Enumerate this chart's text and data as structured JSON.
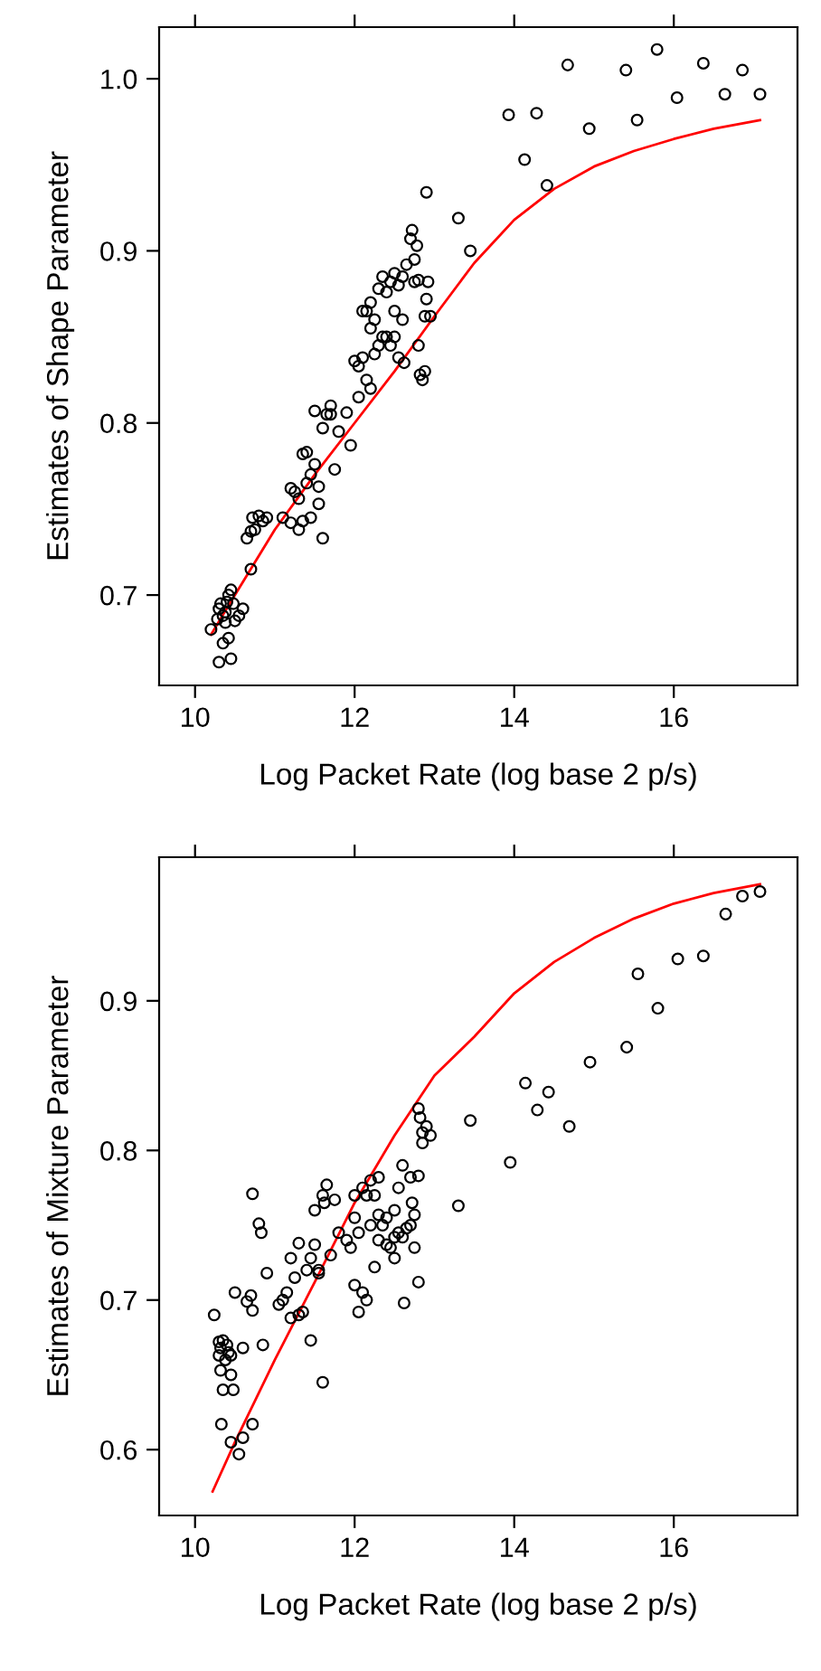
{
  "chart_data": [
    {
      "type": "scatter",
      "xlabel": "Log Packet Rate (log base 2 p/s)",
      "ylabel": "Estimates of Shape Parameter",
      "xlim": [
        9.55,
        17.55
      ],
      "xticks": [
        10,
        12,
        14,
        16
      ],
      "ylim": [
        0.6475,
        1.03
      ],
      "yticks": [
        0.7,
        0.8,
        0.9,
        {
          "value": 1.0,
          "label": "1.0"
        }
      ],
      "series": [
        {
          "marker": "circle",
          "color": "#000000",
          "x": [
            10.2,
            10.28,
            10.3,
            10.32,
            10.35,
            10.38,
            10.4,
            10.42,
            10.45,
            10.48,
            10.5,
            10.55,
            10.6,
            10.3,
            10.35,
            10.42,
            10.45,
            10.38,
            10.65,
            10.7,
            10.75,
            10.72,
            10.8,
            10.85,
            10.9,
            10.7,
            11.1,
            11.2,
            11.25,
            11.2,
            11.3,
            11.35,
            11.35,
            11.4,
            11.45,
            11.45,
            11.5,
            11.5,
            11.55,
            11.6,
            11.6,
            11.65,
            11.7,
            11.7,
            11.4,
            11.55,
            11.75,
            11.8,
            11.9,
            11.95,
            11.3,
            12.0,
            12.05,
            12.1,
            12.05,
            12.1,
            12.15,
            12.2,
            12.2,
            12.15,
            12.2,
            12.25,
            12.25,
            12.3,
            12.35,
            12.4,
            12.4,
            12.45,
            12.45,
            12.5,
            12.5,
            12.55,
            12.55,
            12.6,
            12.6,
            12.62,
            12.65,
            12.7,
            12.72,
            12.75,
            12.75,
            12.8,
            12.78,
            12.8,
            12.82,
            12.85,
            12.88,
            12.88,
            12.9,
            12.92,
            12.9,
            12.95,
            12.3,
            12.35,
            12.5,
            13.3,
            13.45,
            13.93,
            14.28,
            14.67,
            14.13,
            14.41,
            14.94,
            15.4,
            15.54,
            15.79,
            16.04,
            16.37,
            16.64,
            16.86,
            17.08
          ],
          "values": [
            0.68,
            0.686,
            0.692,
            0.695,
            0.688,
            0.69,
            0.696,
            0.7,
            0.703,
            0.695,
            0.685,
            0.688,
            0.692,
            0.661,
            0.672,
            0.675,
            0.663,
            0.684,
            0.733,
            0.737,
            0.738,
            0.745,
            0.746,
            0.743,
            0.745,
            0.715,
            0.745,
            0.742,
            0.76,
            0.762,
            0.738,
            0.743,
            0.782,
            0.765,
            0.77,
            0.745,
            0.776,
            0.807,
            0.753,
            0.733,
            0.797,
            0.805,
            0.805,
            0.81,
            0.783,
            0.763,
            0.773,
            0.795,
            0.806,
            0.787,
            0.756,
            0.836,
            0.833,
            0.838,
            0.815,
            0.865,
            0.865,
            0.87,
            0.855,
            0.825,
            0.82,
            0.84,
            0.86,
            0.878,
            0.885,
            0.876,
            0.85,
            0.845,
            0.882,
            0.887,
            0.865,
            0.88,
            0.838,
            0.885,
            0.86,
            0.835,
            0.892,
            0.907,
            0.912,
            0.895,
            0.882,
            0.883,
            0.903,
            0.845,
            0.828,
            0.825,
            0.83,
            0.862,
            0.872,
            0.882,
            0.934,
            0.862,
            0.845,
            0.85,
            0.85,
            0.919,
            0.9,
            0.979,
            0.98,
            1.008,
            0.953,
            0.938,
            0.971,
            1.005,
            0.976,
            1.017,
            0.989,
            1.009,
            0.991,
            1.005,
            0.991
          ]
        },
        {
          "type": "line",
          "color": "#ff0000",
          "x": [
            10.2,
            10.5,
            11,
            11.5,
            12,
            12.5,
            13,
            13.5,
            14,
            14.5,
            15,
            15.5,
            16,
            16.5,
            17.08
          ],
          "values": [
            0.677,
            0.7,
            0.738,
            0.77,
            0.8,
            0.83,
            0.862,
            0.893,
            0.918,
            0.936,
            0.949,
            0.958,
            0.965,
            0.971,
            0.976
          ]
        }
      ]
    },
    {
      "type": "scatter",
      "xlabel": "Log Packet Rate (log base 2 p/s)",
      "ylabel": "Estimates of Mixture Parameter",
      "xlim": [
        9.55,
        17.55
      ],
      "xticks": [
        10,
        12,
        14,
        16
      ],
      "ylim": [
        0.556,
        0.996
      ],
      "yticks": [
        0.6,
        0.7,
        0.8,
        0.9
      ],
      "series": [
        {
          "marker": "circle",
          "color": "#000000",
          "x": [
            10.24,
            10.3,
            10.32,
            10.35,
            10.3,
            10.32,
            10.35,
            10.33,
            10.38,
            10.4,
            10.42,
            10.45,
            10.45,
            10.48,
            10.45,
            10.5,
            10.55,
            10.6,
            10.72,
            10.6,
            10.65,
            10.7,
            10.72,
            10.72,
            10.8,
            10.83,
            10.85,
            10.9,
            11.05,
            11.1,
            11.15,
            11.2,
            11.2,
            11.25,
            11.3,
            11.3,
            11.35,
            11.4,
            11.45,
            11.45,
            11.5,
            11.5,
            11.55,
            11.55,
            11.6,
            11.6,
            11.62,
            11.65,
            11.7,
            11.75,
            11.8,
            11.9,
            11.95,
            12.0,
            12.0,
            12.05,
            12.05,
            12.1,
            12.1,
            12.15,
            12.15,
            12.2,
            12.2,
            12.25,
            12.25,
            12.3,
            12.3,
            12.35,
            12.4,
            12.4,
            12.45,
            12.5,
            12.5,
            12.55,
            12.55,
            12.6,
            12.6,
            12.62,
            12.65,
            12.7,
            12.7,
            12.72,
            12.75,
            12.75,
            12.8,
            12.8,
            12.8,
            12.82,
            12.85,
            12.85,
            12.9,
            12.95,
            12.0,
            12.3,
            12.5,
            13.3,
            13.45,
            13.95,
            14.14,
            14.43,
            14.29,
            14.69,
            14.95,
            15.41,
            15.55,
            15.8,
            16.05,
            16.37,
            16.65,
            16.86,
            17.08
          ],
          "values": [
            0.69,
            0.672,
            0.668,
            0.673,
            0.663,
            0.653,
            0.64,
            0.617,
            0.66,
            0.67,
            0.665,
            0.663,
            0.65,
            0.64,
            0.605,
            0.705,
            0.597,
            0.608,
            0.617,
            0.668,
            0.699,
            0.703,
            0.693,
            0.771,
            0.751,
            0.745,
            0.67,
            0.718,
            0.697,
            0.7,
            0.705,
            0.688,
            0.728,
            0.715,
            0.738,
            0.69,
            0.692,
            0.72,
            0.728,
            0.673,
            0.737,
            0.76,
            0.72,
            0.718,
            0.77,
            0.645,
            0.765,
            0.777,
            0.73,
            0.767,
            0.745,
            0.74,
            0.735,
            0.755,
            0.71,
            0.745,
            0.692,
            0.775,
            0.705,
            0.77,
            0.7,
            0.75,
            0.78,
            0.77,
            0.722,
            0.757,
            0.782,
            0.75,
            0.755,
            0.737,
            0.735,
            0.742,
            0.728,
            0.745,
            0.775,
            0.79,
            0.742,
            0.698,
            0.748,
            0.782,
            0.75,
            0.765,
            0.735,
            0.757,
            0.783,
            0.712,
            0.828,
            0.822,
            0.812,
            0.805,
            0.816,
            0.81,
            0.77,
            0.74,
            0.76,
            0.763,
            0.82,
            0.792,
            0.845,
            0.839,
            0.827,
            0.816,
            0.859,
            0.869,
            0.918,
            0.895,
            0.928,
            0.93,
            0.958,
            0.97,
            0.973
          ]
        },
        {
          "type": "line",
          "color": "#ff0000",
          "x": [
            10.22,
            10.5,
            11,
            11.5,
            12,
            12.5,
            13,
            13.5,
            14,
            14.5,
            15,
            15.5,
            16,
            16.5,
            17.08
          ],
          "values": [
            0.572,
            0.605,
            0.66,
            0.712,
            0.765,
            0.81,
            0.85,
            0.876,
            0.905,
            0.926,
            0.942,
            0.955,
            0.965,
            0.972,
            0.978
          ]
        }
      ]
    }
  ]
}
